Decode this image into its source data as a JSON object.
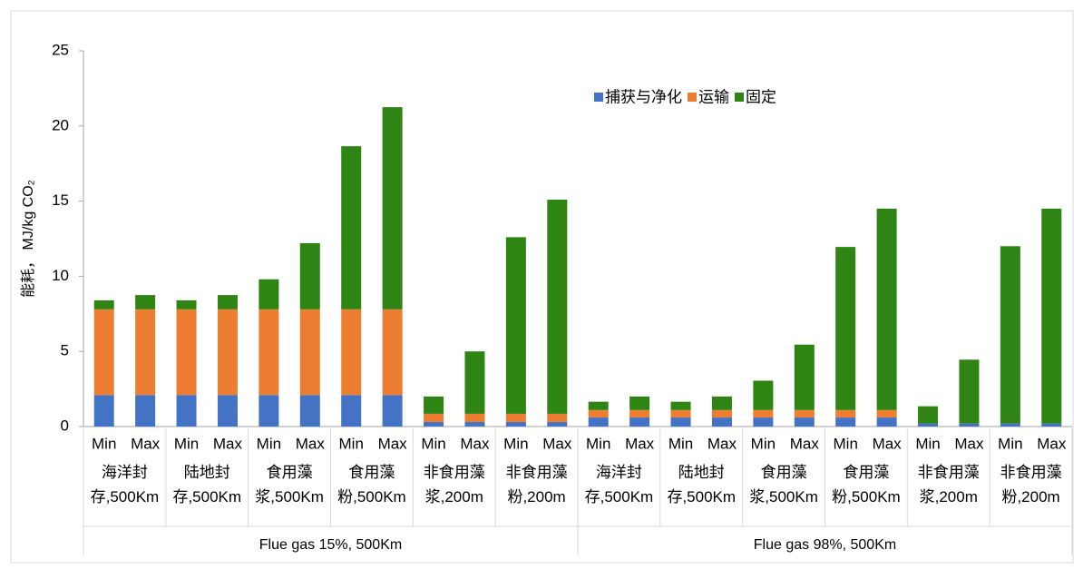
{
  "chart_data": {
    "type": "stacked_bar",
    "ylabel": "能耗， MJ/kg CO₂",
    "categories": [
      "Min",
      "Max",
      "Min",
      "Max",
      "Min",
      "Max",
      "Min",
      "Max",
      "Min",
      "Max",
      "Min",
      "Max",
      "Min",
      "Max",
      "Min",
      "Max",
      "Min",
      "Max",
      "Min",
      "Max",
      "Min",
      "Max",
      "Min",
      "Max"
    ],
    "groups": [
      "海洋封存,500Km",
      "陆地封存,500Km",
      "食用藻浆,500Km",
      "食用藻粉,500Km",
      "非食用藻浆,200m",
      "非食用藻粉,200m",
      "海洋封存,500Km",
      "陆地封存,500Km",
      "食用藻浆,500Km",
      "食用藻粉,500Km",
      "非食用藻浆,200m",
      "非食用藻粉,200m"
    ],
    "supergroups": [
      "Flue gas 15%, 500Km",
      "Flue gas 98%, 500Km"
    ],
    "series": [
      {
        "name": "捕获与净化",
        "color": "#4472c4",
        "values": [
          2.1,
          2.1,
          2.1,
          2.1,
          2.1,
          2.1,
          2.1,
          2.1,
          0.3,
          0.3,
          0.3,
          0.3,
          0.6,
          0.6,
          0.6,
          0.6,
          0.6,
          0.6,
          0.6,
          0.6,
          0.2,
          0.2,
          0.2,
          0.2
        ]
      },
      {
        "name": "运输",
        "color": "#ed7d31",
        "values": [
          5.7,
          5.7,
          5.7,
          5.7,
          5.7,
          5.7,
          5.7,
          5.7,
          0.55,
          0.55,
          0.55,
          0.55,
          0.5,
          0.5,
          0.5,
          0.5,
          0.5,
          0.5,
          0.5,
          0.5,
          0,
          0,
          0,
          0
        ]
      },
      {
        "name": "固定",
        "color": "#2f8513",
        "values": [
          0.6,
          0.95,
          0.6,
          0.95,
          2.0,
          4.4,
          10.85,
          13.45,
          1.15,
          4.15,
          11.75,
          14.25,
          0.55,
          0.9,
          0.55,
          0.9,
          1.95,
          4.35,
          10.85,
          13.4,
          1.15,
          4.25,
          11.8,
          14.3
        ]
      }
    ],
    "ylim": [
      0,
      25
    ],
    "yticks": [
      0,
      5,
      10,
      15,
      20,
      25
    ],
    "legend": "top-right"
  }
}
